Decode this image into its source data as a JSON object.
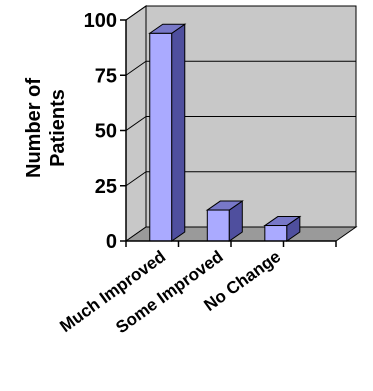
{
  "chart_data": {
    "type": "bar",
    "ylabel": "Number of Patients",
    "ylabel_lines": [
      "Number of",
      "Patients"
    ],
    "categories": [
      "Much Improved",
      "Some Improved",
      "No Change"
    ],
    "values": [
      94,
      14,
      7
    ],
    "ylim": [
      0,
      100
    ],
    "yticks": [
      0,
      25,
      50,
      75,
      100
    ],
    "grid": true,
    "style": "3d-bar",
    "colors": {
      "bar_front": "#aaaaff",
      "bar_side": "#4f4f9e",
      "bar_top": "#7878c8",
      "wall": "#c8c8c8",
      "floor": "#9a9a9a",
      "grid": "#000000"
    }
  }
}
